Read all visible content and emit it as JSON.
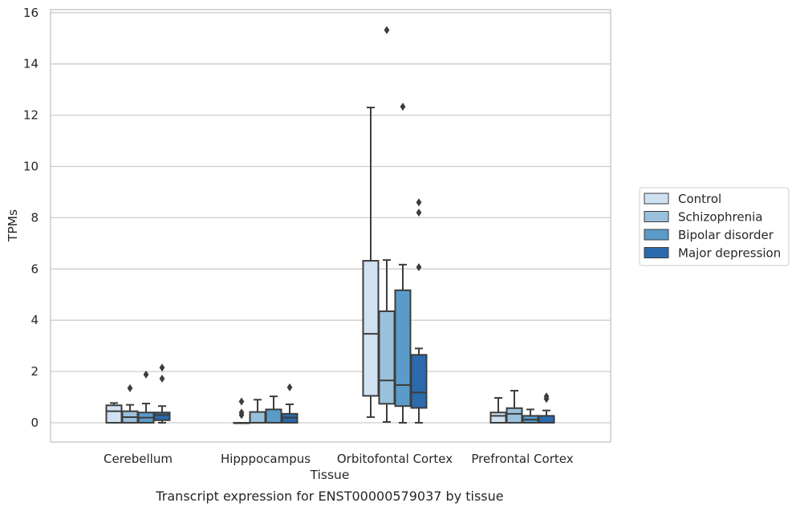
{
  "chart_data": {
    "type": "box",
    "caption": "Transcript expression for ENST00000579037 by tissue",
    "xlabel": "Tissue",
    "ylabel": "TPMs",
    "ylim": [
      -0.75,
      16.15
    ],
    "yticks": [
      0,
      2,
      4,
      6,
      8,
      10,
      12,
      14,
      16
    ],
    "grid": "horizontal",
    "legend_placement": "right",
    "categories": [
      "Cerebellum",
      "Hipppocampus",
      "Orbitofontal Cortex",
      "Prefrontal Cortex"
    ],
    "series": [
      {
        "name": "Control",
        "color": "#d0e1f2",
        "boxes": [
          {
            "min": 0.0,
            "q1": 0.0,
            "median": 0.45,
            "q3": 0.68,
            "max": 0.77,
            "outliers": []
          },
          {
            "min": 0.0,
            "q1": 0.0,
            "median": 0.0,
            "q3": 0.0,
            "max": 0.0,
            "outliers": [
              0.3,
              0.4,
              0.83
            ]
          },
          {
            "min": 0.22,
            "q1": 1.05,
            "median": 3.47,
            "q3": 6.32,
            "max": 12.3,
            "outliers": []
          },
          {
            "min": 0.0,
            "q1": 0.0,
            "median": 0.27,
            "q3": 0.4,
            "max": 0.97,
            "outliers": []
          }
        ]
      },
      {
        "name": "Schizophrenia",
        "color": "#9ac1dc",
        "boxes": [
          {
            "min": 0.0,
            "q1": 0.0,
            "median": 0.22,
            "q3": 0.45,
            "max": 0.7,
            "outliers": [
              1.35
            ]
          },
          {
            "min": 0.0,
            "q1": 0.0,
            "median": 0.0,
            "q3": 0.42,
            "max": 0.9,
            "outliers": []
          },
          {
            "min": 0.03,
            "q1": 0.74,
            "median": 1.65,
            "q3": 4.35,
            "max": 6.35,
            "outliers": [
              15.32
            ]
          },
          {
            "min": 0.0,
            "q1": 0.0,
            "median": 0.35,
            "q3": 0.57,
            "max": 1.25,
            "outliers": []
          }
        ]
      },
      {
        "name": "Bipolar disorder",
        "color": "#5a9bc9",
        "boxes": [
          {
            "min": 0.0,
            "q1": 0.0,
            "median": 0.2,
            "q3": 0.4,
            "max": 0.75,
            "outliers": [
              1.88
            ]
          },
          {
            "min": 0.0,
            "q1": 0.0,
            "median": 0.0,
            "q3": 0.52,
            "max": 1.03,
            "outliers": []
          },
          {
            "min": 0.0,
            "q1": 0.65,
            "median": 1.47,
            "q3": 5.17,
            "max": 6.17,
            "outliers": [
              12.33
            ]
          },
          {
            "min": 0.0,
            "q1": 0.0,
            "median": 0.12,
            "q3": 0.27,
            "max": 0.52,
            "outliers": []
          }
        ]
      },
      {
        "name": "Major depression",
        "color": "#2a6aad",
        "boxes": [
          {
            "min": 0.0,
            "q1": 0.1,
            "median": 0.3,
            "q3": 0.4,
            "max": 0.65,
            "outliers": [
              1.72,
              2.15
            ]
          },
          {
            "min": 0.0,
            "q1": 0.0,
            "median": 0.2,
            "q3": 0.35,
            "max": 0.72,
            "outliers": [
              1.38
            ]
          },
          {
            "min": 0.0,
            "q1": 0.58,
            "median": 1.18,
            "q3": 2.65,
            "max": 2.9,
            "outliers": [
              6.07,
              8.2,
              8.6
            ]
          },
          {
            "min": 0.0,
            "q1": 0.0,
            "median": 0.0,
            "q3": 0.27,
            "max": 0.48,
            "outliers": [
              0.93,
              1.03
            ]
          }
        ]
      }
    ]
  }
}
